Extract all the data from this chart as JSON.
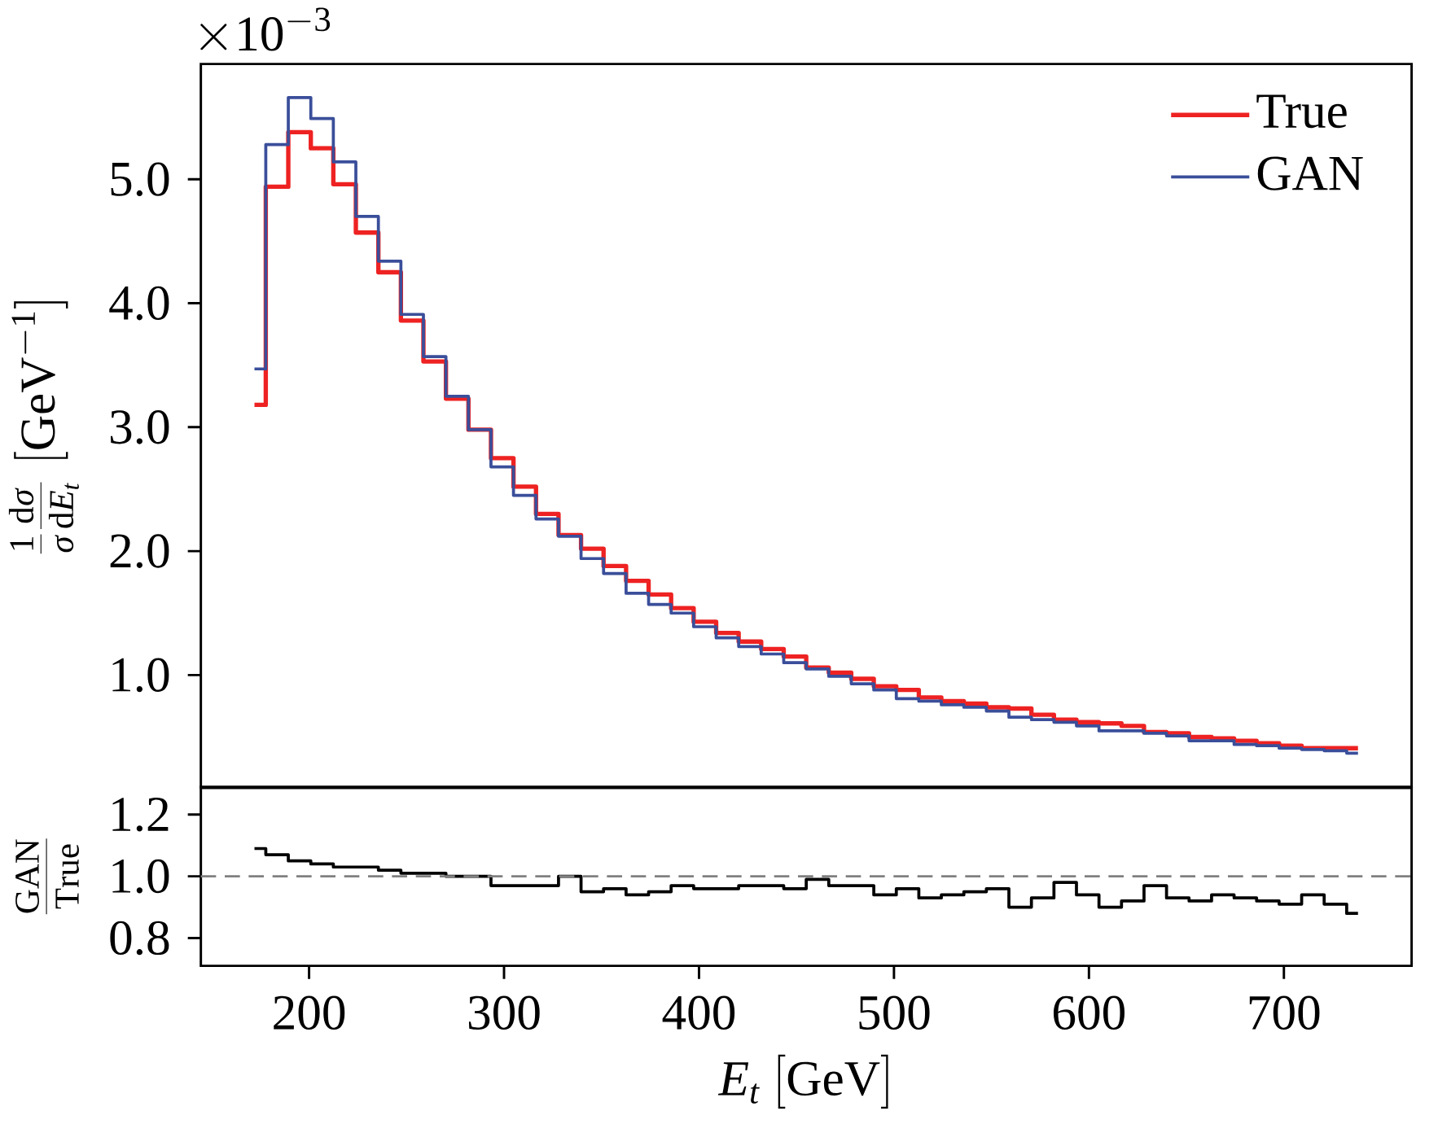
{
  "chart_data": [
    {
      "type": "step",
      "x": [
        172.0,
        183.6,
        195.1,
        206.7,
        218.2,
        229.8,
        241.3,
        252.9,
        264.4,
        276.0,
        287.5,
        299.1,
        310.6,
        322.2,
        333.7,
        345.3,
        356.8,
        368.4,
        379.9,
        391.5,
        403.0,
        414.6,
        426.1,
        437.7,
        449.2,
        460.8,
        472.3,
        483.9,
        495.4,
        507.0,
        518.5,
        530.1,
        541.6,
        553.2,
        564.7,
        576.3,
        587.8,
        599.4,
        610.9,
        622.5,
        634.0,
        645.6,
        657.1,
        668.7,
        680.2,
        691.8,
        703.3,
        714.9,
        726.4,
        738.0
      ],
      "series": [
        {
          "name": "True",
          "color": "#ee2222",
          "values": [
            3.18,
            4.94,
            5.38,
            5.25,
            4.96,
            4.57,
            4.25,
            3.86,
            3.53,
            3.23,
            2.98,
            2.75,
            2.52,
            2.3,
            2.13,
            2.02,
            1.88,
            1.76,
            1.65,
            1.54,
            1.43,
            1.34,
            1.27,
            1.21,
            1.15,
            1.06,
            1.02,
            0.97,
            0.91,
            0.88,
            0.82,
            0.79,
            0.77,
            0.74,
            0.73,
            0.68,
            0.64,
            0.62,
            0.61,
            0.59,
            0.54,
            0.53,
            0.5,
            0.49,
            0.47,
            0.45,
            0.43,
            0.41,
            0.41,
            0.41
          ]
        },
        {
          "name": "GAN",
          "color": "#3a4e9a",
          "values": [
            3.47,
            5.28,
            5.66,
            5.49,
            5.14,
            4.7,
            4.34,
            3.91,
            3.57,
            3.25,
            2.98,
            2.68,
            2.45,
            2.26,
            2.12,
            1.94,
            1.82,
            1.66,
            1.57,
            1.5,
            1.39,
            1.3,
            1.23,
            1.17,
            1.1,
            1.05,
            0.99,
            0.93,
            0.88,
            0.81,
            0.79,
            0.76,
            0.74,
            0.71,
            0.66,
            0.64,
            0.62,
            0.59,
            0.55,
            0.55,
            0.53,
            0.51,
            0.47,
            0.47,
            0.44,
            0.43,
            0.41,
            0.4,
            0.39,
            0.37
          ]
        }
      ],
      "ylabel": "\\frac{1}{\\sigma}\\frac{\\mathrm{d}\\sigma}{\\mathrm{d}E_t}\\;[\\mathrm{GeV}^{-1}]",
      "annotations": [
        "\\times 10^{-3}"
      ],
      "xlim": [
        144.5,
        765.5
      ],
      "ylim": [
        0.09,
        5.93
      ],
      "yticks": [
        {
          "value": 1,
          "label": "1.0"
        },
        {
          "value": 2,
          "label": "2.0"
        },
        {
          "value": 3,
          "label": "3.0"
        },
        {
          "value": 4,
          "label": "4.0"
        },
        {
          "value": 5,
          "label": "5.0"
        }
      ],
      "tick_labels": "y",
      "legend": "top right",
      "line_style": "solid"
    },
    {
      "type": "step",
      "x": [
        172.0,
        183.6,
        195.1,
        206.7,
        218.2,
        229.8,
        241.3,
        252.9,
        264.4,
        276.0,
        287.5,
        299.1,
        310.6,
        322.2,
        333.7,
        345.3,
        356.8,
        368.4,
        379.9,
        391.5,
        403.0,
        414.6,
        426.1,
        437.7,
        449.2,
        460.8,
        472.3,
        483.9,
        495.4,
        507.0,
        518.5,
        530.1,
        541.6,
        553.2,
        564.7,
        576.3,
        587.8,
        599.4,
        610.9,
        622.5,
        634.0,
        645.6,
        657.1,
        668.7,
        680.2,
        691.8,
        703.3,
        714.9,
        726.4,
        738.0
      ],
      "series": [
        {
          "color": "#000000",
          "values": [
            1.09,
            1.07,
            1.05,
            1.04,
            1.03,
            1.03,
            1.02,
            1.01,
            1.01,
            1.0,
            1.0,
            0.97,
            0.97,
            0.97,
            1.0,
            0.95,
            0.96,
            0.94,
            0.95,
            0.97,
            0.96,
            0.96,
            0.97,
            0.97,
            0.96,
            0.99,
            0.97,
            0.97,
            0.94,
            0.96,
            0.93,
            0.94,
            0.95,
            0.96,
            0.9,
            0.93,
            0.98,
            0.94,
            0.9,
            0.92,
            0.97,
            0.93,
            0.92,
            0.94,
            0.93,
            0.92,
            0.91,
            0.94,
            0.91,
            0.88
          ]
        }
      ],
      "xlabel": "E_t\\ [\\mathrm{GeV}]",
      "ylabel": "\\frac{\\mathrm{GAN}}{\\mathrm{True}}",
      "xlim": [
        144.5,
        765.5
      ],
      "ylim": [
        0.71,
        1.29
      ],
      "xticks": [
        200,
        300,
        400,
        500,
        600,
        700
      ],
      "yticks": [
        {
          "value": 0.8,
          "label": "0.8"
        },
        {
          "value": 1.0,
          "label": "1.0"
        },
        {
          "value": 1.2,
          "label": "1.2"
        }
      ],
      "ref_lines": [
        {
          "axis": "y",
          "value": 1.0,
          "color": "#808080",
          "line_style": "dashed"
        }
      ],
      "line_style": "solid"
    }
  ]
}
